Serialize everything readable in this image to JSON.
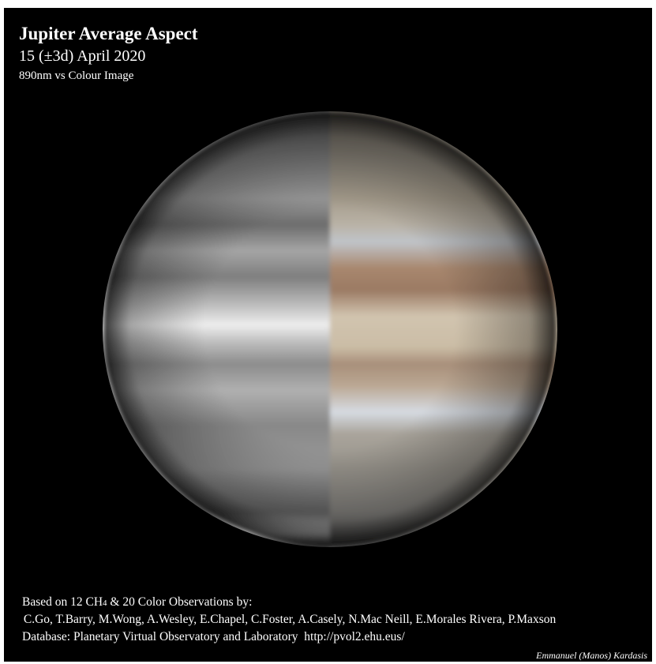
{
  "header": {
    "title": "Jupiter Average Aspect",
    "date": "15 (±3d) April 2020",
    "subtitle": "890nm vs  Colour  Image"
  },
  "footer": {
    "line1": [
      "Based on 12 CH",
      "4",
      " & 20 Color Observations by:"
    ],
    "observers": " C.Go, T.Barry, M.Wong, A.Wesley, E.Chapel, C.Foster, A.Casely, N.Mac Neill, E.Morales Rivera, P.Maxson",
    "database": "Database: Planetary Virtual Observatory and Laboratory  http://pvol2.ehu.eus/",
    "credit": "Emmanuel (Manos) Kardasis"
  }
}
